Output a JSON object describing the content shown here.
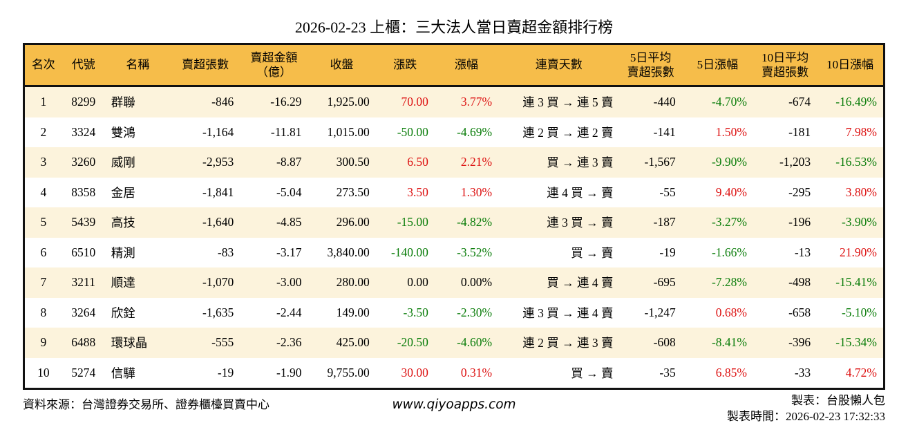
{
  "page": {
    "title": "2026-02-23 上櫃：三大法人當日賣超金額排行榜"
  },
  "chart_data": {
    "type": "table",
    "title": "2026-02-23 上櫃：三大法人當日賣超金額排行榜",
    "columns": [
      {
        "key": "rank",
        "label": "名次",
        "align": "center"
      },
      {
        "key": "code",
        "label": "代號",
        "align": "center"
      },
      {
        "key": "name",
        "label": "名稱",
        "align": "left"
      },
      {
        "key": "sell_shares",
        "label": "賣超張數",
        "align": "right"
      },
      {
        "key": "sell_amount",
        "label": "賣超金額\n（億）",
        "align": "right"
      },
      {
        "key": "close",
        "label": "收盤",
        "align": "right"
      },
      {
        "key": "change",
        "label": "漲跌",
        "align": "right"
      },
      {
        "key": "change_pct",
        "label": "漲幅",
        "align": "right"
      },
      {
        "key": "streak",
        "label": "連賣天數",
        "align": "right"
      },
      {
        "key": "avg5",
        "label": "5日平均\n賣超張數",
        "align": "right"
      },
      {
        "key": "pct5",
        "label": "5日漲幅",
        "align": "right"
      },
      {
        "key": "avg10",
        "label": "10日平均\n賣超張數",
        "align": "right"
      },
      {
        "key": "pct10",
        "label": "10日漲幅",
        "align": "right"
      }
    ],
    "rows": [
      {
        "rank": "1",
        "code": "8299",
        "name": "群聯",
        "sell_shares": "-846",
        "sell_amount": "-16.29",
        "close": "1,925.00",
        "change": {
          "t": "70.00",
          "c": "up"
        },
        "change_pct": {
          "t": "3.77%",
          "c": "up"
        },
        "streak": "連 3 買 → 連 5 賣",
        "avg5": "-440",
        "pct5": {
          "t": "-4.70%",
          "c": "down"
        },
        "avg10": "-674",
        "pct10": {
          "t": "-16.49%",
          "c": "down"
        }
      },
      {
        "rank": "2",
        "code": "3324",
        "name": "雙鴻",
        "sell_shares": "-1,164",
        "sell_amount": "-11.81",
        "close": "1,015.00",
        "change": {
          "t": "-50.00",
          "c": "down"
        },
        "change_pct": {
          "t": "-4.69%",
          "c": "down"
        },
        "streak": "連 2 買 → 連 2 賣",
        "avg5": "-141",
        "pct5": {
          "t": "1.50%",
          "c": "up"
        },
        "avg10": "-181",
        "pct10": {
          "t": "7.98%",
          "c": "up"
        }
      },
      {
        "rank": "3",
        "code": "3260",
        "name": "威剛",
        "sell_shares": "-2,953",
        "sell_amount": "-8.87",
        "close": "300.50",
        "change": {
          "t": "6.50",
          "c": "up"
        },
        "change_pct": {
          "t": "2.21%",
          "c": "up"
        },
        "streak": "買 → 連 3 賣",
        "avg5": "-1,567",
        "pct5": {
          "t": "-9.90%",
          "c": "down"
        },
        "avg10": "-1,203",
        "pct10": {
          "t": "-16.53%",
          "c": "down"
        }
      },
      {
        "rank": "4",
        "code": "8358",
        "name": "金居",
        "sell_shares": "-1,841",
        "sell_amount": "-5.04",
        "close": "273.50",
        "change": {
          "t": "3.50",
          "c": "up"
        },
        "change_pct": {
          "t": "1.30%",
          "c": "up"
        },
        "streak": "連 4 買 → 賣",
        "avg5": "-55",
        "pct5": {
          "t": "9.40%",
          "c": "up"
        },
        "avg10": "-295",
        "pct10": {
          "t": "3.80%",
          "c": "up"
        }
      },
      {
        "rank": "5",
        "code": "5439",
        "name": "高技",
        "sell_shares": "-1,640",
        "sell_amount": "-4.85",
        "close": "296.00",
        "change": {
          "t": "-15.00",
          "c": "down"
        },
        "change_pct": {
          "t": "-4.82%",
          "c": "down"
        },
        "streak": "連 3 買 → 賣",
        "avg5": "-187",
        "pct5": {
          "t": "-3.27%",
          "c": "down"
        },
        "avg10": "-196",
        "pct10": {
          "t": "-3.90%",
          "c": "down"
        }
      },
      {
        "rank": "6",
        "code": "6510",
        "name": "精測",
        "sell_shares": "-83",
        "sell_amount": "-3.17",
        "close": "3,840.00",
        "change": {
          "t": "-140.00",
          "c": "down"
        },
        "change_pct": {
          "t": "-3.52%",
          "c": "down"
        },
        "streak": "買 → 賣",
        "avg5": "-19",
        "pct5": {
          "t": "-1.66%",
          "c": "down"
        },
        "avg10": "-13",
        "pct10": {
          "t": "21.90%",
          "c": "up"
        }
      },
      {
        "rank": "7",
        "code": "3211",
        "name": "順達",
        "sell_shares": "-1,070",
        "sell_amount": "-3.00",
        "close": "280.00",
        "change": {
          "t": "0.00",
          "c": "flat"
        },
        "change_pct": {
          "t": "0.00%",
          "c": "flat"
        },
        "streak": "買 → 連 4 賣",
        "avg5": "-695",
        "pct5": {
          "t": "-7.28%",
          "c": "down"
        },
        "avg10": "-498",
        "pct10": {
          "t": "-15.41%",
          "c": "down"
        }
      },
      {
        "rank": "8",
        "code": "3264",
        "name": "欣銓",
        "sell_shares": "-1,635",
        "sell_amount": "-2.44",
        "close": "149.00",
        "change": {
          "t": "-3.50",
          "c": "down"
        },
        "change_pct": {
          "t": "-2.30%",
          "c": "down"
        },
        "streak": "連 3 買 → 連 4 賣",
        "avg5": "-1,247",
        "pct5": {
          "t": "0.68%",
          "c": "up"
        },
        "avg10": "-658",
        "pct10": {
          "t": "-5.10%",
          "c": "down"
        }
      },
      {
        "rank": "9",
        "code": "6488",
        "name": "環球晶",
        "sell_shares": "-555",
        "sell_amount": "-2.36",
        "close": "425.00",
        "change": {
          "t": "-20.50",
          "c": "down"
        },
        "change_pct": {
          "t": "-4.60%",
          "c": "down"
        },
        "streak": "連 2 買 → 連 3 賣",
        "avg5": "-608",
        "pct5": {
          "t": "-8.41%",
          "c": "down"
        },
        "avg10": "-396",
        "pct10": {
          "t": "-15.34%",
          "c": "down"
        }
      },
      {
        "rank": "10",
        "code": "5274",
        "name": "信驊",
        "sell_shares": "-19",
        "sell_amount": "-1.90",
        "close": "9,755.00",
        "change": {
          "t": "30.00",
          "c": "up"
        },
        "change_pct": {
          "t": "0.31%",
          "c": "up"
        },
        "streak": "買 → 賣",
        "avg5": "-35",
        "pct5": {
          "t": "6.85%",
          "c": "up"
        },
        "avg10": "-33",
        "pct10": {
          "t": "4.72%",
          "c": "up"
        }
      }
    ]
  },
  "footer": {
    "source": "資料來源：台灣證券交易所、證券櫃檯買賣中心",
    "website": "www.qiyoapps.com",
    "maker": "製表：台股懶人包",
    "made_at": "製表時間：2026-02-23 17:32:33"
  },
  "colors": {
    "header_bg": "#f6bd4a",
    "row_stripe": "#fcf3dc",
    "up_red": "#dd1111",
    "down_green": "#0a7d0a",
    "border": "#111111"
  }
}
